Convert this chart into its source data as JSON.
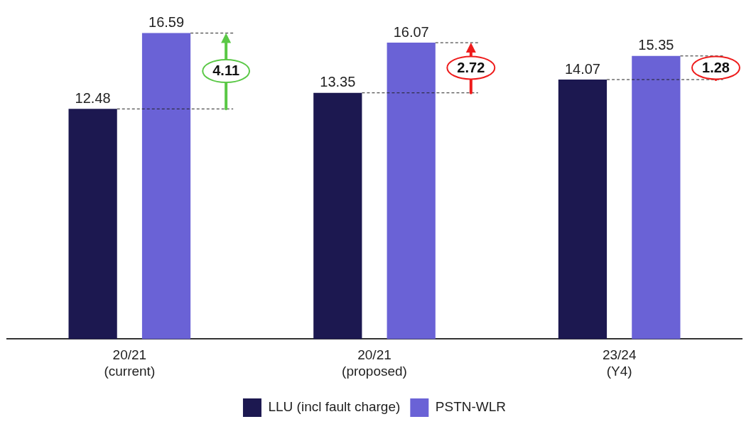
{
  "chart_data": {
    "type": "bar",
    "categories": [
      "20/21\n(current)",
      "20/21\n(proposed)",
      "23/24\n(Y4)"
    ],
    "series": [
      {
        "name": "LLU (incl fault charge)",
        "color": "#1c1850",
        "values": [
          12.48,
          13.35,
          14.07
        ]
      },
      {
        "name": "PSTN-WLR",
        "color": "#6a62d6",
        "values": [
          16.59,
          16.07,
          15.35
        ]
      }
    ],
    "data_labels": true,
    "legend": "bottom",
    "grid": false,
    "annotations": [
      "4.11",
      "2.72",
      "1.28"
    ]
  }
}
